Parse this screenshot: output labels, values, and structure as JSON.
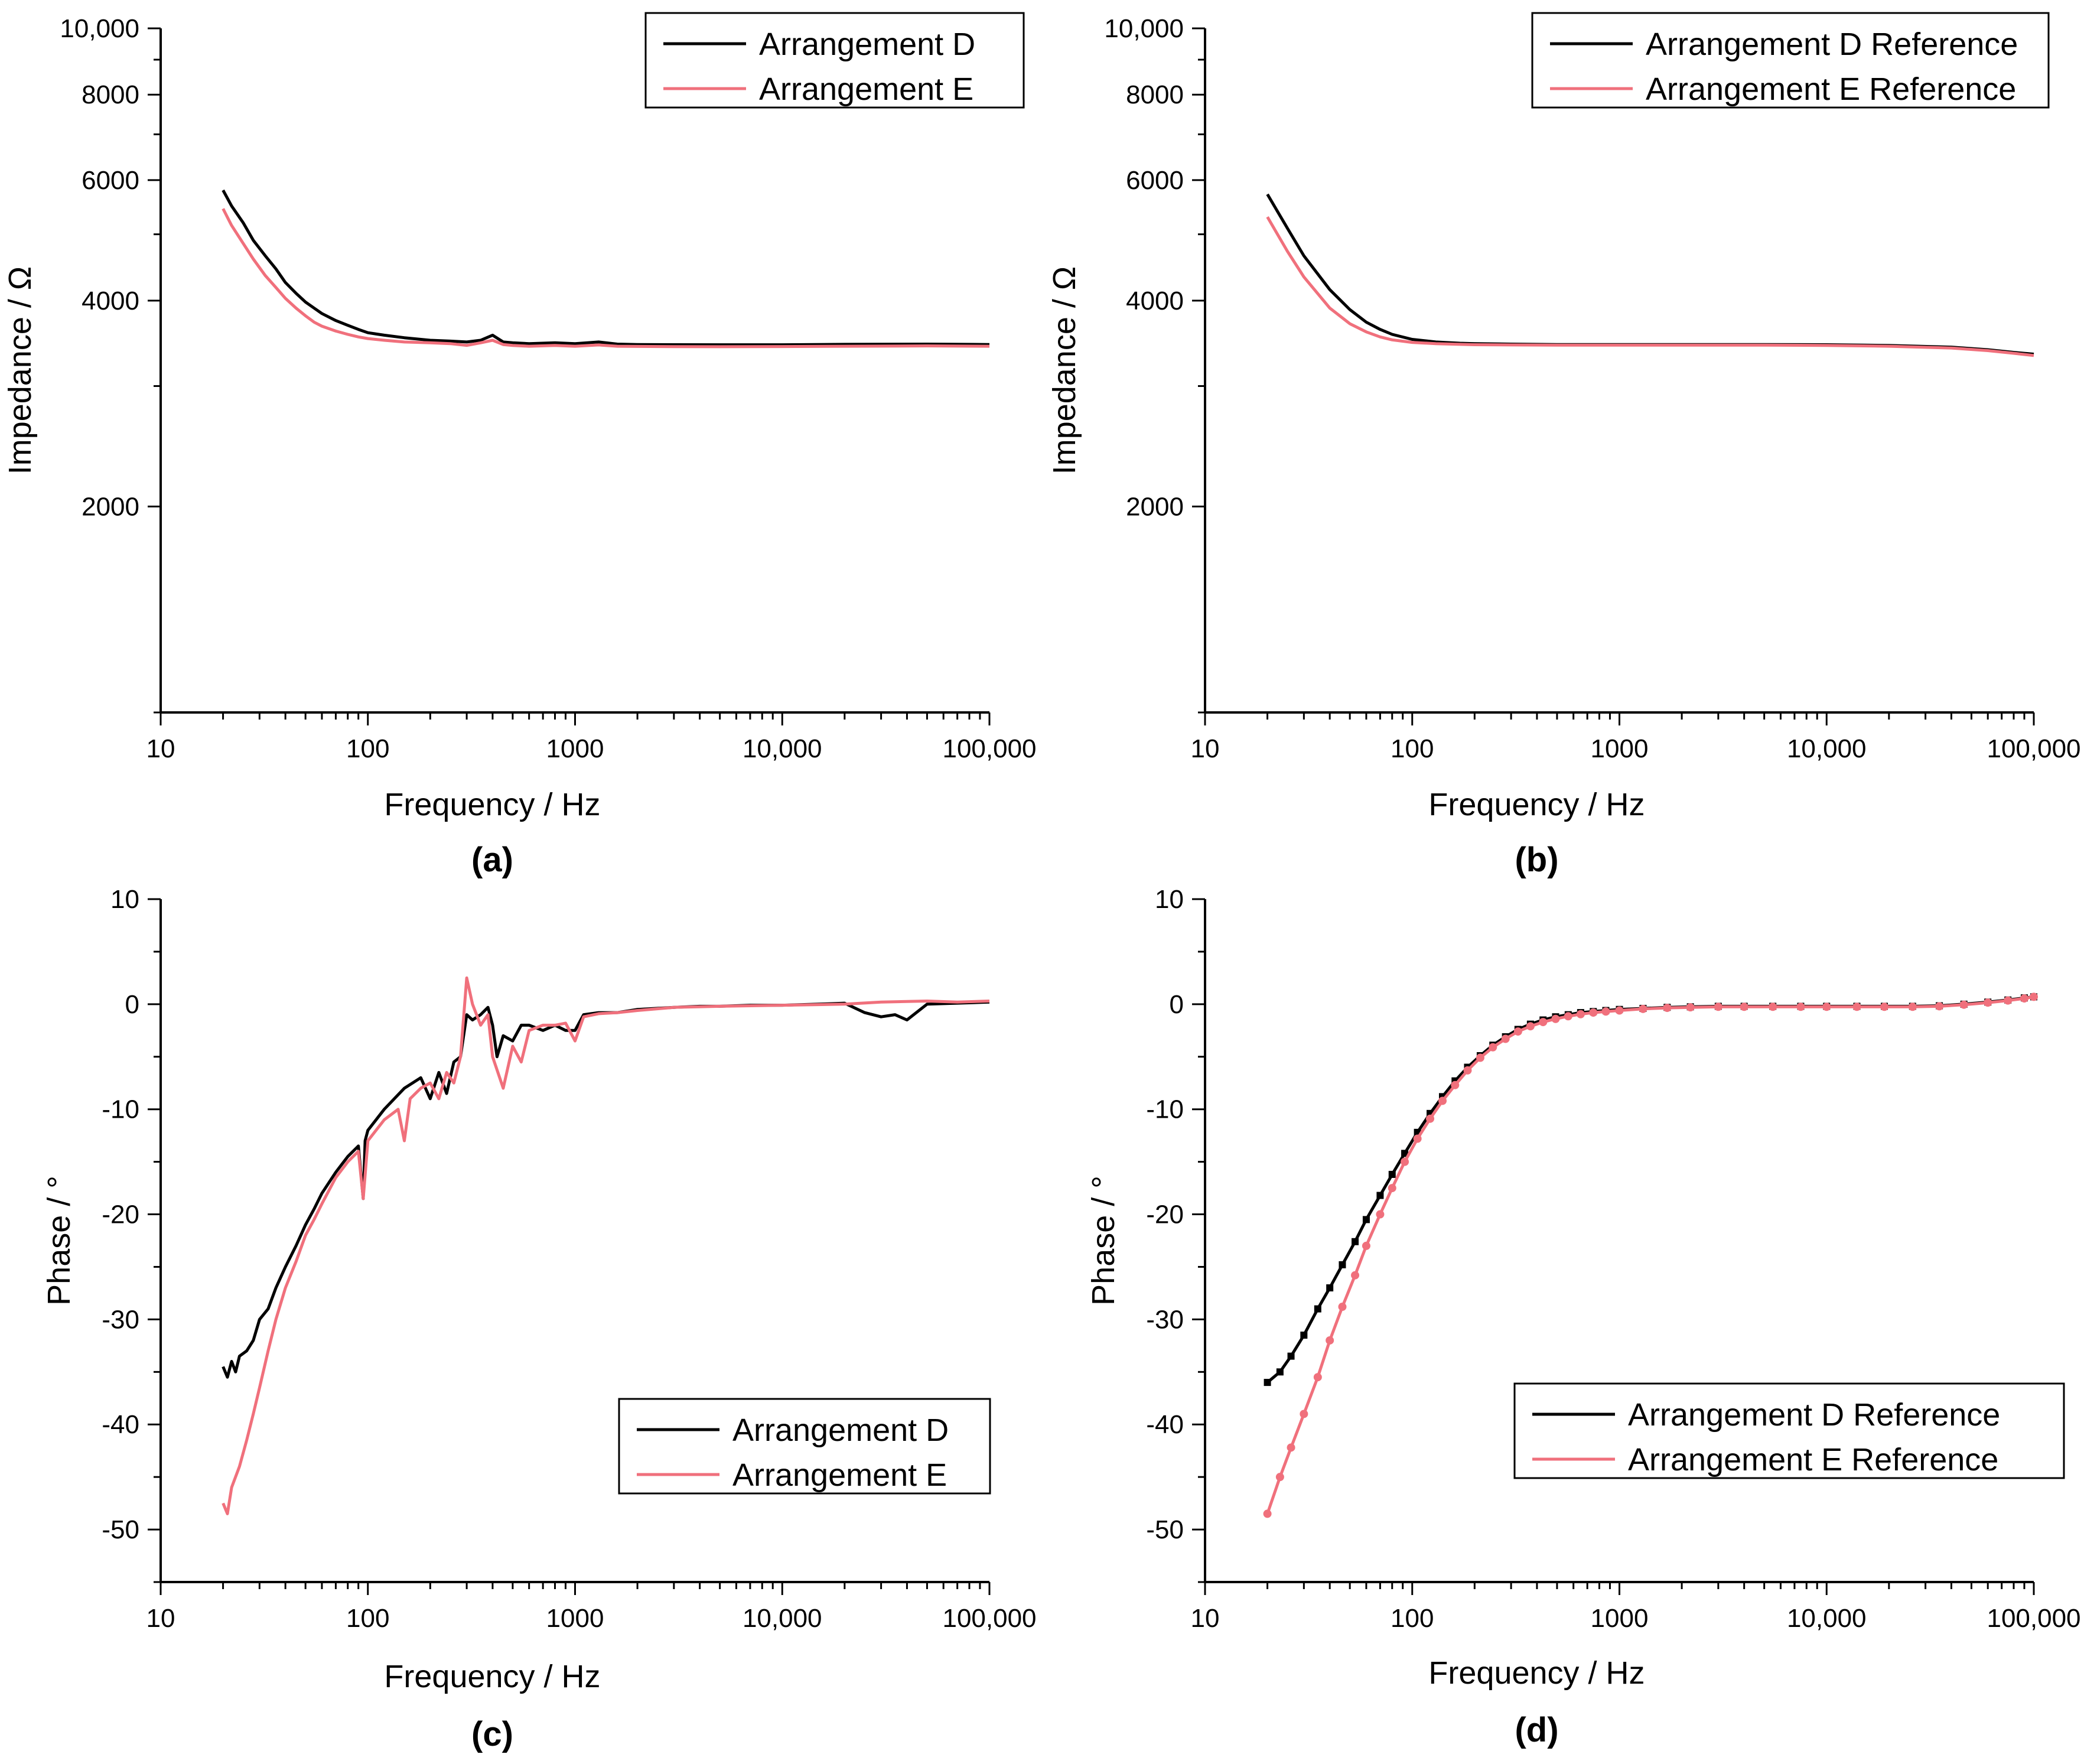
{
  "figure": {
    "panels": [
      {
        "id": "a",
        "label": "(a)",
        "type": "line"
      },
      {
        "id": "b",
        "label": "(b)",
        "type": "line"
      },
      {
        "id": "c",
        "label": "(c)",
        "type": "line"
      },
      {
        "id": "d",
        "label": "(d)",
        "type": "line"
      }
    ]
  },
  "colors": {
    "series_d": "#000000",
    "series_e": "#f0707c",
    "axis": "#000000"
  },
  "chart_data": [
    {
      "id": "a",
      "type": "line",
      "label": "(a)",
      "xlabel": "Frequency / Hz",
      "ylabel": "Impedance / Ω",
      "xscale": "log",
      "yscale": "log",
      "xlim": [
        10,
        100000
      ],
      "ylim": [
        1000,
        10000
      ],
      "xticks": [
        {
          "v": 10,
          "label": "10"
        },
        {
          "v": 100,
          "label": "100"
        },
        {
          "v": 1000,
          "label": "1000"
        },
        {
          "v": 10000,
          "label": "10,000"
        },
        {
          "v": 100000,
          "label": "100,000"
        }
      ],
      "yticks": [
        {
          "v": 2000,
          "label": "2000"
        },
        {
          "v": 4000,
          "label": "4000"
        },
        {
          "v": 6000,
          "label": "6000"
        },
        {
          "v": 8000,
          "label": "8000"
        },
        {
          "v": 10000,
          "label": "10,000"
        }
      ],
      "legend_position": "top-right",
      "series": [
        {
          "name": "Arrangement D",
          "color": "#000000",
          "marker": "none",
          "x": [
            20,
            22,
            25,
            28,
            32,
            36,
            40,
            45,
            50,
            55,
            60,
            70,
            80,
            90,
            100,
            120,
            150,
            200,
            250,
            300,
            350,
            400,
            450,
            500,
            600,
            800,
            1000,
            1300,
            1600,
            2000,
            3000,
            5000,
            10000,
            20000,
            50000,
            100000
          ],
          "y": [
            5800,
            5500,
            5200,
            4900,
            4650,
            4450,
            4250,
            4100,
            3980,
            3900,
            3830,
            3740,
            3680,
            3630,
            3590,
            3560,
            3530,
            3500,
            3490,
            3480,
            3500,
            3560,
            3480,
            3470,
            3460,
            3470,
            3460,
            3480,
            3455,
            3450,
            3448,
            3447,
            3447,
            3452,
            3455,
            3450
          ]
        },
        {
          "name": "Arrangement E",
          "color": "#f0707c",
          "marker": "none",
          "x": [
            20,
            22,
            25,
            28,
            32,
            36,
            40,
            45,
            50,
            55,
            60,
            70,
            80,
            90,
            100,
            120,
            150,
            200,
            250,
            300,
            350,
            400,
            450,
            500,
            600,
            800,
            1000,
            1300,
            1600,
            2000,
            3000,
            5000,
            10000,
            20000,
            50000,
            100000
          ],
          "y": [
            5450,
            5150,
            4850,
            4600,
            4350,
            4180,
            4030,
            3900,
            3800,
            3720,
            3670,
            3610,
            3570,
            3540,
            3520,
            3500,
            3480,
            3470,
            3460,
            3440,
            3470,
            3500,
            3450,
            3440,
            3430,
            3440,
            3430,
            3445,
            3430,
            3428,
            3426,
            3425,
            3427,
            3430,
            3434,
            3430
          ]
        }
      ]
    },
    {
      "id": "b",
      "type": "line",
      "label": "(b)",
      "xlabel": "Frequency / Hz",
      "ylabel": "Impedance / Ω",
      "xscale": "log",
      "yscale": "log",
      "xlim": [
        10,
        100000
      ],
      "ylim": [
        1000,
        10000
      ],
      "xticks": [
        {
          "v": 10,
          "label": "10"
        },
        {
          "v": 100,
          "label": "100"
        },
        {
          "v": 1000,
          "label": "1000"
        },
        {
          "v": 10000,
          "label": "10,000"
        },
        {
          "v": 100000,
          "label": "100,000"
        }
      ],
      "yticks": [
        {
          "v": 2000,
          "label": "2000"
        },
        {
          "v": 4000,
          "label": "4000"
        },
        {
          "v": 6000,
          "label": "6000"
        },
        {
          "v": 8000,
          "label": "8000"
        },
        {
          "v": 10000,
          "label": "10,000"
        }
      ],
      "legend_position": "top-right",
      "series": [
        {
          "name": "Arrangement D Reference",
          "color": "#000000",
          "marker": "none",
          "x": [
            20,
            25,
            30,
            40,
            50,
            60,
            70,
            80,
            100,
            130,
            170,
            200,
            300,
            500,
            1000,
            2000,
            5000,
            10000,
            20000,
            40000,
            60000,
            80000,
            100000
          ],
          "y": [
            5720,
            5100,
            4650,
            4150,
            3880,
            3720,
            3630,
            3570,
            3510,
            3480,
            3465,
            3460,
            3455,
            3450,
            3450,
            3450,
            3450,
            3448,
            3440,
            3420,
            3390,
            3360,
            3340
          ]
        },
        {
          "name": "Arrangement E Reference",
          "color": "#f0707c",
          "marker": "none",
          "x": [
            20,
            25,
            30,
            40,
            50,
            60,
            70,
            80,
            100,
            130,
            170,
            200,
            300,
            500,
            1000,
            2000,
            5000,
            10000,
            20000,
            40000,
            60000,
            80000,
            100000
          ],
          "y": [
            5300,
            4720,
            4330,
            3900,
            3700,
            3600,
            3540,
            3505,
            3475,
            3460,
            3452,
            3448,
            3445,
            3443,
            3443,
            3443,
            3443,
            3440,
            3430,
            3410,
            3380,
            3350,
            3325
          ]
        }
      ]
    },
    {
      "id": "c",
      "type": "line",
      "label": "(c)",
      "xlabel": "Frequency / Hz",
      "ylabel": "Phase / °",
      "xscale": "log",
      "yscale": "linear",
      "xlim": [
        10,
        100000
      ],
      "ylim": [
        -55,
        10
      ],
      "xticks": [
        {
          "v": 10,
          "label": "10"
        },
        {
          "v": 100,
          "label": "100"
        },
        {
          "v": 1000,
          "label": "1000"
        },
        {
          "v": 10000,
          "label": "10,000"
        },
        {
          "v": 100000,
          "label": "100,000"
        }
      ],
      "yticks": [
        {
          "v": -50,
          "label": "-50"
        },
        {
          "v": -40,
          "label": "-40"
        },
        {
          "v": -30,
          "label": "-30"
        },
        {
          "v": -20,
          "label": "-20"
        },
        {
          "v": -10,
          "label": "-10"
        },
        {
          "v": 0,
          "label": "0"
        },
        {
          "v": 10,
          "label": "10"
        }
      ],
      "legend_position": "bottom-right",
      "series": [
        {
          "name": "Arrangement D",
          "color": "#000000",
          "marker": "none",
          "x": [
            20,
            21,
            22,
            23,
            24,
            26,
            28,
            30,
            33,
            36,
            40,
            45,
            50,
            55,
            60,
            70,
            80,
            90,
            95,
            97,
            100,
            120,
            150,
            180,
            200,
            220,
            240,
            260,
            280,
            300,
            320,
            350,
            380,
            400,
            420,
            450,
            500,
            550,
            600,
            700,
            800,
            900,
            1000,
            1100,
            1300,
            1600,
            2000,
            3000,
            4000,
            5000,
            7000,
            10000,
            15000,
            20000,
            25000,
            30000,
            35000,
            40000,
            50000,
            70000,
            100000
          ],
          "y": [
            -34.5,
            -35.5,
            -34.0,
            -35.0,
            -33.5,
            -33.0,
            -32.0,
            -30.0,
            -29.0,
            -27.0,
            -25.0,
            -23.0,
            -21.0,
            -19.5,
            -18.0,
            -16.0,
            -14.5,
            -13.5,
            -18.5,
            -13.0,
            -12.0,
            -10.0,
            -8.0,
            -7.0,
            -9.0,
            -6.5,
            -8.5,
            -5.5,
            -5.0,
            -1.0,
            -1.5,
            -1.0,
            -0.3,
            -2.0,
            -5.0,
            -3.0,
            -3.5,
            -2.0,
            -2.0,
            -2.5,
            -2.0,
            -2.5,
            -2.5,
            -1.0,
            -0.8,
            -0.8,
            -0.5,
            -0.3,
            -0.2,
            -0.2,
            -0.1,
            -0.1,
            0.0,
            0.1,
            -0.8,
            -1.2,
            -1.0,
            -1.5,
            0.0,
            0.1,
            0.2
          ]
        },
        {
          "name": "Arrangement E",
          "color": "#f0707c",
          "marker": "none",
          "x": [
            20,
            21,
            22,
            24,
            26,
            28,
            30,
            33,
            36,
            40,
            45,
            50,
            55,
            60,
            70,
            80,
            90,
            95,
            100,
            120,
            140,
            150,
            160,
            180,
            200,
            220,
            240,
            260,
            280,
            300,
            320,
            350,
            380,
            400,
            450,
            500,
            550,
            600,
            700,
            800,
            900,
            1000,
            1100,
            1300,
            1600,
            2000,
            3000,
            5000,
            10000,
            20000,
            30000,
            50000,
            70000,
            100000
          ],
          "y": [
            -47.5,
            -48.5,
            -46.0,
            -44.0,
            -41.5,
            -39.0,
            -36.5,
            -33.0,
            -30.0,
            -27.0,
            -24.5,
            -22.0,
            -20.5,
            -19.0,
            -16.5,
            -15.0,
            -14.0,
            -18.5,
            -13.0,
            -11.0,
            -10.0,
            -13.0,
            -9.0,
            -8.0,
            -7.5,
            -9.0,
            -6.5,
            -7.5,
            -5.0,
            2.5,
            0.0,
            -2.0,
            -1.0,
            -5.0,
            -8.0,
            -4.0,
            -5.5,
            -2.5,
            -2.0,
            -2.0,
            -1.8,
            -3.5,
            -1.2,
            -0.9,
            -0.8,
            -0.6,
            -0.3,
            -0.2,
            -0.1,
            0.0,
            0.2,
            0.3,
            0.2,
            0.3
          ]
        }
      ]
    },
    {
      "id": "d",
      "type": "line",
      "label": "(d)",
      "xlabel": "Frequency / Hz",
      "ylabel": "Phase / °",
      "xscale": "log",
      "yscale": "linear",
      "xlim": [
        10,
        100000
      ],
      "ylim": [
        -55,
        10
      ],
      "xticks": [
        {
          "v": 10,
          "label": "10"
        },
        {
          "v": 100,
          "label": "100"
        },
        {
          "v": 1000,
          "label": "1000"
        },
        {
          "v": 10000,
          "label": "10,000"
        },
        {
          "v": 100000,
          "label": "100,000"
        }
      ],
      "yticks": [
        {
          "v": -50,
          "label": "-50"
        },
        {
          "v": -40,
          "label": "-40"
        },
        {
          "v": -30,
          "label": "-30"
        },
        {
          "v": -20,
          "label": "-20"
        },
        {
          "v": -10,
          "label": "-10"
        },
        {
          "v": 0,
          "label": "0"
        },
        {
          "v": 10,
          "label": "10"
        }
      ],
      "legend_position": "bottom-right",
      "series": [
        {
          "name": "Arrangement D Reference",
          "color": "#000000",
          "marker": "square",
          "x": [
            20,
            23,
            26,
            30,
            35,
            40,
            46,
            53,
            60,
            70,
            80,
            92,
            106,
            122,
            140,
            161,
            185,
            213,
            245,
            282,
            324,
            372,
            428,
            492,
            566,
            650,
            748,
            860,
            1000,
            1300,
            1700,
            2200,
            3000,
            4000,
            5500,
            7500,
            10000,
            14000,
            19000,
            26000,
            35000,
            46000,
            60000,
            75000,
            90000,
            100000
          ],
          "y": [
            -36.0,
            -35.0,
            -33.5,
            -31.5,
            -29.0,
            -27.0,
            -24.8,
            -22.6,
            -20.5,
            -18.2,
            -16.2,
            -14.2,
            -12.2,
            -10.4,
            -8.8,
            -7.3,
            -6.0,
            -4.9,
            -3.9,
            -3.1,
            -2.4,
            -1.9,
            -1.5,
            -1.2,
            -1.0,
            -0.8,
            -0.7,
            -0.6,
            -0.5,
            -0.4,
            -0.3,
            -0.25,
            -0.2,
            -0.2,
            -0.2,
            -0.2,
            -0.2,
            -0.2,
            -0.2,
            -0.2,
            -0.15,
            0.0,
            0.2,
            0.4,
            0.6,
            0.7
          ]
        },
        {
          "name": "Arrangement E Reference",
          "color": "#f0707c",
          "marker": "circle",
          "x": [
            20,
            23,
            26,
            30,
            35,
            40,
            46,
            53,
            60,
            70,
            80,
            92,
            106,
            122,
            140,
            161,
            185,
            213,
            245,
            282,
            324,
            372,
            428,
            492,
            566,
            650,
            748,
            860,
            1000,
            1300,
            1700,
            2200,
            3000,
            4000,
            5500,
            7500,
            10000,
            14000,
            19000,
            26000,
            35000,
            46000,
            60000,
            75000,
            90000,
            100000
          ],
          "y": [
            -48.5,
            -45.0,
            -42.2,
            -39.0,
            -35.5,
            -32.0,
            -28.8,
            -25.8,
            -23.0,
            -20.0,
            -17.5,
            -15.0,
            -12.8,
            -10.9,
            -9.2,
            -7.7,
            -6.3,
            -5.1,
            -4.1,
            -3.3,
            -2.6,
            -2.1,
            -1.7,
            -1.4,
            -1.15,
            -0.95,
            -0.8,
            -0.7,
            -0.6,
            -0.45,
            -0.35,
            -0.3,
            -0.25,
            -0.25,
            -0.25,
            -0.25,
            -0.25,
            -0.25,
            -0.25,
            -0.25,
            -0.2,
            -0.05,
            0.15,
            0.35,
            0.55,
            0.7
          ]
        }
      ]
    }
  ]
}
